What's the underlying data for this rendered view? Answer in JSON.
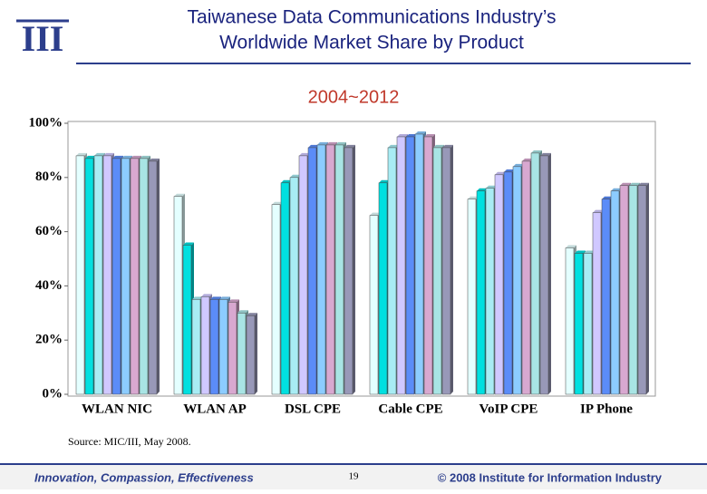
{
  "header": {
    "logo": "III",
    "title_line1": "Taiwanese Data Communications Industry’s",
    "title_line2": "Worldwide Market Share by Product"
  },
  "chart_data": {
    "type": "bar",
    "subtitle": "2004~2012",
    "categories": [
      "WLAN NIC",
      "WLAN AP",
      "DSL CPE",
      "Cable CPE",
      "VoIP CPE",
      "IP Phone"
    ],
    "series": [
      {
        "color": "#e4ffff",
        "values": [
          88,
          73,
          70,
          66,
          72,
          54
        ]
      },
      {
        "color": "#00e0e0",
        "values": [
          87,
          55,
          78,
          78,
          75,
          52
        ]
      },
      {
        "color": "#a8ecf4",
        "values": [
          88,
          35,
          80,
          91,
          76,
          52
        ]
      },
      {
        "color": "#d0c8ff",
        "values": [
          88,
          36,
          88,
          95,
          81,
          67
        ]
      },
      {
        "color": "#5b8cf8",
        "values": [
          87,
          35,
          91,
          95,
          82,
          72
        ]
      },
      {
        "color": "#8cccff",
        "values": [
          87,
          35,
          92,
          96,
          84,
          75
        ]
      },
      {
        "color": "#d8a8d0",
        "values": [
          87,
          34,
          92,
          95,
          86,
          77
        ]
      },
      {
        "color": "#a8e4e4",
        "values": [
          87,
          30,
          92,
          91,
          89,
          77
        ]
      },
      {
        "color": "#9898b8",
        "values": [
          86,
          29,
          91,
          91,
          88,
          77
        ]
      }
    ],
    "ylim": [
      0,
      100
    ],
    "yticks": [
      {
        "value": 0,
        "label": "0%"
      },
      {
        "value": 20,
        "label": "20%"
      },
      {
        "value": 40,
        "label": "40%"
      },
      {
        "value": 60,
        "label": "60%"
      },
      {
        "value": 80,
        "label": "80%"
      },
      {
        "value": 100,
        "label": "100%"
      }
    ],
    "grid": false,
    "source": "Source: MIC/III, May 2008."
  },
  "footer": {
    "motto": "Innovation, Compassion, Effectiveness",
    "page": 19,
    "copyright": "© 2008 Institute for Information Industry"
  }
}
